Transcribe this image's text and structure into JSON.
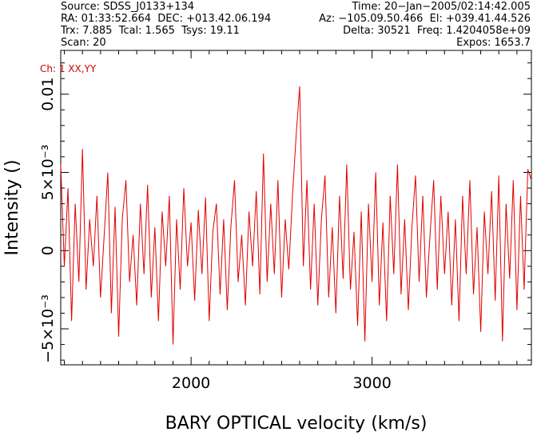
{
  "header": {
    "source": "Source: SDSS_J0133+134",
    "time": "Time: 20−Jan−2005/02:14:42.005",
    "radec": "RA: 01:33:52.664  DEC: +013.42.06.194",
    "azel": "Az: −105.09.50.466  El: +039.41.44.526",
    "trx": "Trx: 7.885  Tcal: 1.565  Tsys: 19.11",
    "delta": "Delta: 30521  Freq: 1.4204058e+09",
    "scan": "Scan: 20",
    "expos": "Expos: 1653.7"
  },
  "channel_label": "Ch: 1  XX,YY",
  "colors": {
    "trace": "#e00000",
    "axis": "#000000"
  },
  "chart_data": {
    "type": "line",
    "xlabel": "BARY OPTICAL velocity (km/s)",
    "ylabel": "Intensity ()",
    "xlim": [
      1280,
      3880
    ],
    "ylim": [
      -0.0073,
      0.0128
    ],
    "xticks": [
      {
        "value": 2000,
        "label": "2000"
      },
      {
        "value": 3000,
        "label": "3000"
      }
    ],
    "yticks": [
      {
        "value": -0.005,
        "label": "−5×10⁻³"
      },
      {
        "value": 0,
        "label": "0"
      },
      {
        "value": 0.005,
        "label": "5×10⁻³"
      },
      {
        "value": 0.01,
        "label": "0.01"
      }
    ],
    "series": [
      {
        "color": "#e00000",
        "x": [
          1280,
          1300,
          1320,
          1340,
          1360,
          1380,
          1400,
          1420,
          1440,
          1460,
          1480,
          1500,
          1520,
          1540,
          1560,
          1580,
          1600,
          1620,
          1640,
          1660,
          1680,
          1700,
          1720,
          1740,
          1760,
          1780,
          1800,
          1820,
          1840,
          1860,
          1880,
          1900,
          1920,
          1940,
          1960,
          1980,
          2000,
          2020,
          2040,
          2060,
          2080,
          2100,
          2120,
          2140,
          2160,
          2180,
          2200,
          2220,
          2240,
          2260,
          2280,
          2300,
          2320,
          2340,
          2360,
          2380,
          2400,
          2420,
          2440,
          2460,
          2480,
          2500,
          2520,
          2540,
          2560,
          2580,
          2600,
          2620,
          2640,
          2660,
          2680,
          2700,
          2720,
          2740,
          2760,
          2780,
          2800,
          2820,
          2840,
          2860,
          2880,
          2900,
          2920,
          2940,
          2960,
          2980,
          3000,
          3020,
          3040,
          3060,
          3080,
          3100,
          3120,
          3140,
          3160,
          3180,
          3200,
          3220,
          3240,
          3260,
          3280,
          3300,
          3320,
          3340,
          3360,
          3380,
          3400,
          3420,
          3440,
          3460,
          3480,
          3500,
          3520,
          3540,
          3560,
          3580,
          3600,
          3620,
          3640,
          3660,
          3680,
          3700,
          3720,
          3740,
          3760,
          3780,
          3800,
          3820,
          3840,
          3860,
          3880
        ],
        "y": [
          0.0055,
          -0.001,
          0.004,
          -0.0045,
          0.003,
          -0.002,
          0.0065,
          -0.0025,
          0.002,
          -0.001,
          0.0035,
          -0.003,
          0.001,
          0.005,
          -0.004,
          0.0028,
          -0.0055,
          0.002,
          0.0045,
          -0.002,
          0.001,
          -0.0035,
          0.003,
          -0.0015,
          0.0042,
          -0.003,
          0.0015,
          -0.0045,
          0.0025,
          -0.001,
          0.0035,
          -0.006,
          0.002,
          -0.0025,
          0.004,
          -0.001,
          0.0018,
          -0.0032,
          0.0026,
          -0.0015,
          0.0034,
          -0.0045,
          0.0012,
          0.003,
          -0.0028,
          0.002,
          -0.0038,
          0.0015,
          0.0045,
          -0.002,
          0.001,
          -0.0035,
          0.0025,
          -0.001,
          0.0038,
          -0.0028,
          0.0062,
          -0.002,
          0.003,
          -0.0015,
          0.0045,
          -0.003,
          0.002,
          -0.0012,
          0.0035,
          0.0073,
          0.0105,
          -0.001,
          0.0045,
          -0.0025,
          0.003,
          -0.0035,
          0.002,
          0.0048,
          -0.003,
          0.0015,
          -0.004,
          0.0035,
          -0.0018,
          0.0055,
          -0.0025,
          0.0012,
          -0.0048,
          0.0025,
          -0.0058,
          0.003,
          -0.002,
          0.005,
          -0.0035,
          0.0018,
          -0.0045,
          0.0035,
          -0.0015,
          0.0055,
          -0.0028,
          0.002,
          -0.0038,
          0.0015,
          0.0048,
          -0.002,
          0.0035,
          -0.003,
          0.001,
          0.0045,
          -0.0025,
          0.0035,
          -0.0015,
          0.0025,
          -0.0035,
          0.002,
          -0.0045,
          0.0035,
          -0.0015,
          0.0045,
          -0.0028,
          0.0015,
          -0.0052,
          0.0025,
          -0.0015,
          0.0038,
          -0.0032,
          0.0048,
          -0.0058,
          0.003,
          -0.0018,
          0.0045,
          -0.0038,
          0.0035,
          -0.0025,
          0.0052,
          0.0045
        ]
      }
    ],
    "grid": false
  }
}
